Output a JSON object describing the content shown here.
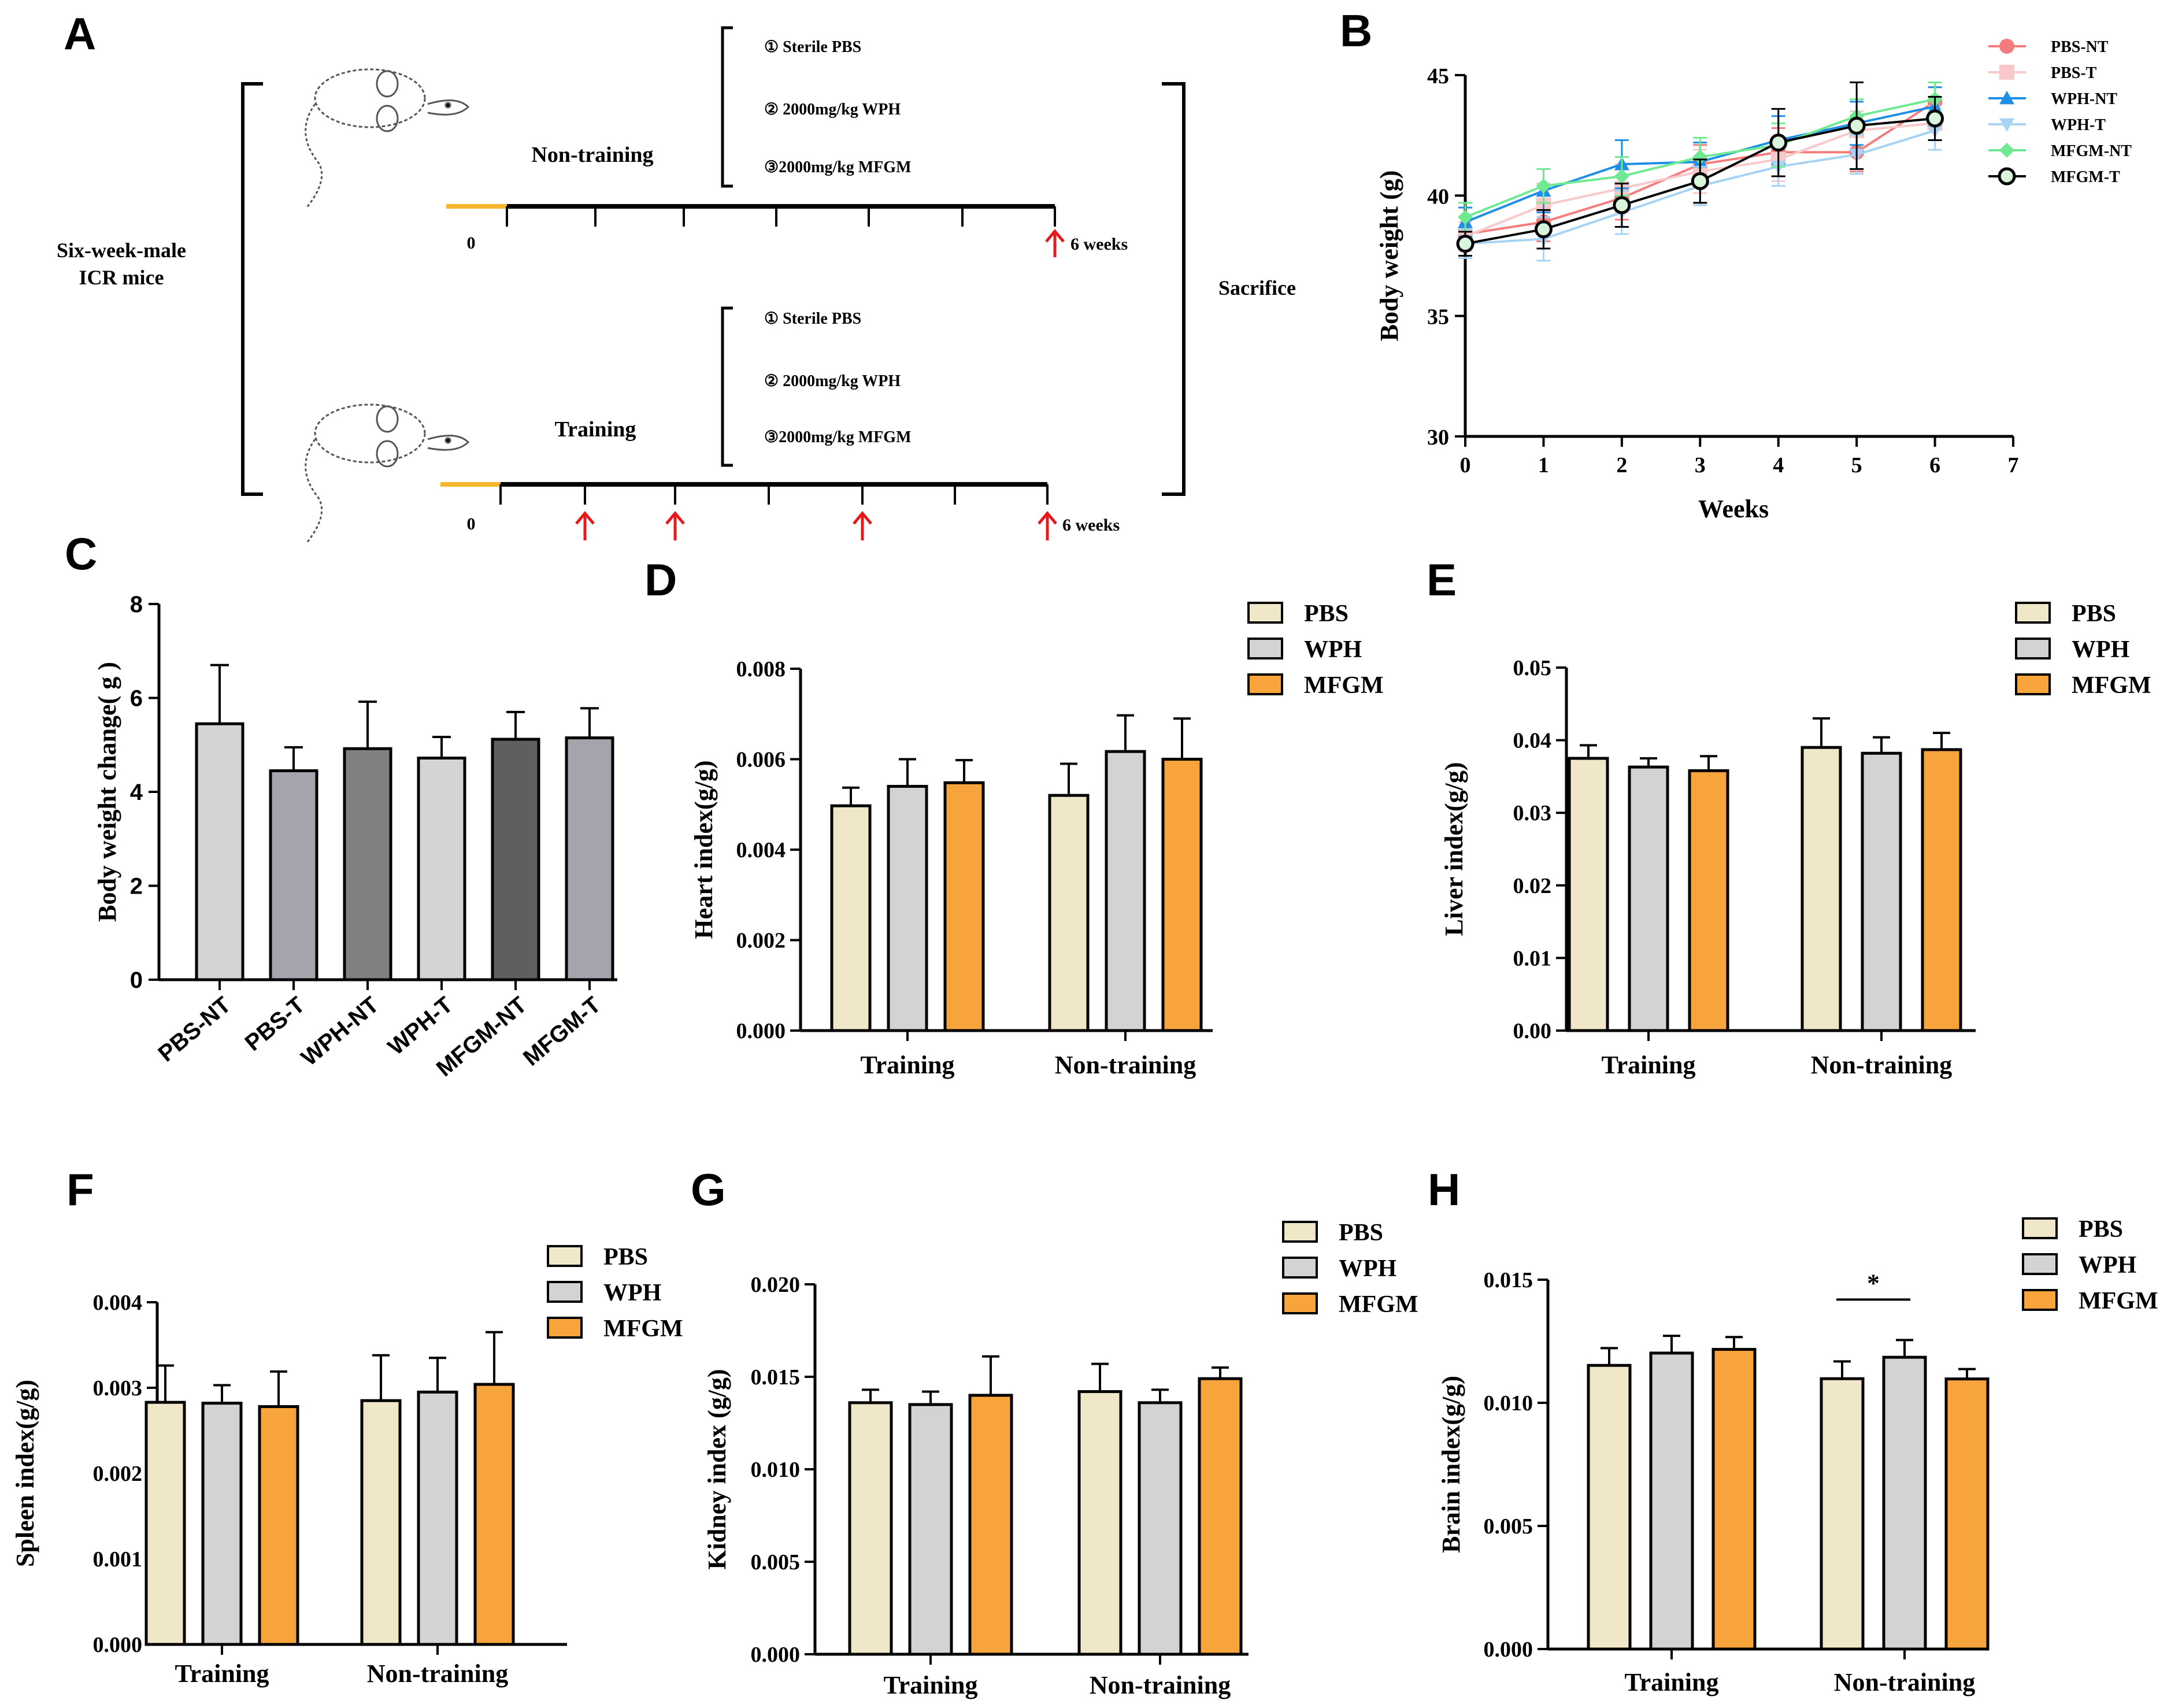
{
  "panel_labels": {
    "a": "A",
    "b": "B",
    "c": "C",
    "d": "D",
    "e": "E",
    "f": "F",
    "g": "G",
    "h": "H"
  },
  "colors": {
    "PBS": "#efe7c8",
    "WPH": "#d3d3d3",
    "MFGM": "#f7a43c",
    "timeline": "#000000",
    "start": "#f5b82e",
    "arrow": "#e41a1c"
  },
  "design": {
    "subject": [
      "Six-week-male",
      "ICR mice"
    ],
    "groups": [
      "Non-training",
      "Training"
    ],
    "treatments": [
      "① Sterile PBS",
      "② 2000mg/kg WPH",
      "③2000mg/kg MFGM"
    ],
    "start_label": "0",
    "end_label": "6 weeks",
    "outcome": "Sacrifice"
  },
  "chart_data": [
    {
      "id": "B",
      "type": "line",
      "xlabel": "Weeks",
      "ylabel": "Body weight (g)",
      "xlim": [
        0,
        7
      ],
      "ylim": [
        30,
        45
      ],
      "xticks": [
        "0",
        "1",
        "2",
        "3",
        "4",
        "5",
        "6",
        "7"
      ],
      "yticks": [
        "30",
        "35",
        "40",
        "45"
      ],
      "x": [
        0,
        1,
        2,
        3,
        4,
        5,
        6
      ],
      "series": [
        {
          "name": "PBS-NT",
          "color": "#f47c7c",
          "marker": "circle",
          "values": [
            38.4,
            38.9,
            39.9,
            41.3,
            41.8,
            41.8,
            43.9
          ],
          "err": [
            0.5,
            0.8,
            0.9,
            0.8,
            1.0,
            0.8,
            0.6
          ]
        },
        {
          "name": "PBS-T",
          "color": "#f9c9c9",
          "marker": "square",
          "values": [
            38.3,
            39.6,
            40.3,
            41.0,
            41.5,
            42.7,
            43.0
          ],
          "err": [
            0.6,
            0.9,
            1.0,
            0.9,
            0.9,
            0.8,
            0.7
          ]
        },
        {
          "name": "WPH-NT",
          "color": "#1f8fe6",
          "marker": "triangle",
          "values": [
            38.9,
            40.2,
            41.3,
            41.4,
            42.3,
            43.0,
            43.7
          ],
          "err": [
            0.6,
            0.9,
            1.0,
            0.8,
            1.0,
            0.9,
            0.8
          ]
        },
        {
          "name": "WPH-T",
          "color": "#a7d3f5",
          "marker": "triangle-down",
          "values": [
            38.0,
            38.2,
            39.3,
            40.4,
            41.2,
            41.7,
            42.7
          ],
          "err": [
            0.6,
            0.9,
            0.9,
            0.8,
            0.8,
            0.8,
            0.8
          ]
        },
        {
          "name": "MFGM-NT",
          "color": "#6fea93",
          "marker": "diamond",
          "values": [
            39.1,
            40.4,
            40.8,
            41.6,
            42.1,
            43.3,
            44.0
          ],
          "err": [
            0.6,
            0.7,
            0.8,
            0.8,
            0.9,
            0.7,
            0.7
          ]
        },
        {
          "name": "MFGM-T",
          "color": "#000000",
          "marker": "ring",
          "values": [
            38.0,
            38.6,
            39.6,
            40.6,
            42.2,
            42.9,
            43.2
          ],
          "err": [
            0.5,
            0.8,
            0.9,
            0.9,
            1.4,
            1.8,
            0.9
          ]
        }
      ]
    },
    {
      "id": "C",
      "type": "bar",
      "ylabel": "Body weight change( g )",
      "ylim": [
        0,
        8
      ],
      "yticks": [
        "0",
        "2",
        "4",
        "6",
        "8"
      ],
      "categories": [
        "PBS-NT",
        "PBS-T",
        "WPH-NT",
        "WPH-T",
        "MFGM-NT",
        "MFGM-T"
      ],
      "values": [
        5.45,
        4.45,
        4.92,
        4.72,
        5.12,
        5.15
      ],
      "err": [
        1.25,
        0.5,
        1.0,
        0.45,
        0.58,
        0.63
      ],
      "bar_colors": [
        "#d4d4d4",
        "#a4a4ac",
        "#808080",
        "#d4d4d4",
        "#5f5f5f",
        "#a4a4ac"
      ]
    },
    {
      "id": "D",
      "type": "bar",
      "ylabel": "Heart index(g/g)",
      "ylim": [
        0,
        0.008
      ],
      "yticks": [
        "0.000",
        "0.002",
        "0.004",
        "0.006",
        "0.008"
      ],
      "categories": [
        "Training",
        "Non-training"
      ],
      "legend": [
        "PBS",
        "WPH",
        "MFGM"
      ],
      "series": [
        {
          "name": "PBS",
          "values": [
            0.00497,
            0.0052
          ],
          "err": [
            0.0004,
            0.0007
          ]
        },
        {
          "name": "WPH",
          "values": [
            0.0054,
            0.00617
          ],
          "err": [
            0.0006,
            0.0008
          ]
        },
        {
          "name": "MFGM",
          "values": [
            0.00548,
            0.006
          ],
          "err": [
            0.0005,
            0.0009
          ]
        }
      ]
    },
    {
      "id": "E",
      "type": "bar",
      "ylabel": "Liver index(g/g)",
      "ylim": [
        0,
        0.05
      ],
      "yticks": [
        "0.00",
        "0.01",
        "0.02",
        "0.03",
        "0.04",
        "0.05"
      ],
      "categories": [
        "Training",
        "Non-training"
      ],
      "legend": [
        "PBS",
        "WPH",
        "MFGM"
      ],
      "series": [
        {
          "name": "PBS",
          "values": [
            0.0375,
            0.039
          ],
          "err": [
            0.0018,
            0.004
          ]
        },
        {
          "name": "WPH",
          "values": [
            0.0363,
            0.0382
          ],
          "err": [
            0.0012,
            0.0022
          ]
        },
        {
          "name": "MFGM",
          "values": [
            0.0358,
            0.0387
          ],
          "err": [
            0.002,
            0.0023
          ]
        }
      ]
    },
    {
      "id": "F",
      "type": "bar",
      "ylabel": "Spleen index(g/g)",
      "ylim": [
        0,
        0.004
      ],
      "yticks": [
        "0.000",
        "0.001",
        "0.002",
        "0.003",
        "0.004"
      ],
      "categories": [
        "Training",
        "Non-training"
      ],
      "legend": [
        "PBS",
        "WPH",
        "MFGM"
      ],
      "series": [
        {
          "name": "PBS",
          "values": [
            0.00283,
            0.00285
          ],
          "err": [
            0.00043,
            0.00053
          ]
        },
        {
          "name": "WPH",
          "values": [
            0.00282,
            0.00295
          ],
          "err": [
            0.00021,
            0.0004
          ]
        },
        {
          "name": "MFGM",
          "values": [
            0.00278,
            0.00304
          ],
          "err": [
            0.00041,
            0.00061
          ]
        }
      ]
    },
    {
      "id": "G",
      "type": "bar",
      "ylabel": "Kidney index (g/g)",
      "ylim": [
        0,
        0.02
      ],
      "yticks": [
        "0.000",
        "0.005",
        "0.010",
        "0.015",
        "0.020"
      ],
      "categories": [
        "Training",
        "Non-training"
      ],
      "legend": [
        "PBS",
        "WPH",
        "MFGM"
      ],
      "series": [
        {
          "name": "PBS",
          "values": [
            0.0136,
            0.0142
          ],
          "err": [
            0.0007,
            0.0015
          ]
        },
        {
          "name": "WPH",
          "values": [
            0.0135,
            0.0136
          ],
          "err": [
            0.0007,
            0.0007
          ]
        },
        {
          "name": "MFGM",
          "values": [
            0.014,
            0.0149
          ],
          "err": [
            0.0021,
            0.0006
          ]
        }
      ]
    },
    {
      "id": "H",
      "type": "bar",
      "ylabel": "Brain index(g/g)",
      "ylim": [
        0,
        0.015
      ],
      "yticks": [
        "0.000",
        "0.005",
        "0.010",
        "0.015"
      ],
      "categories": [
        "Training",
        "Non-training"
      ],
      "legend": [
        "PBS",
        "WPH",
        "MFGM"
      ],
      "series": [
        {
          "name": "PBS",
          "values": [
            0.01152,
            0.01098
          ],
          "err": [
            0.0007,
            0.0007
          ]
        },
        {
          "name": "WPH",
          "values": [
            0.01202,
            0.01185
          ],
          "err": [
            0.0007,
            0.0007
          ]
        },
        {
          "name": "MFGM",
          "values": [
            0.01217,
            0.01097
          ],
          "err": [
            0.0005,
            0.0004
          ]
        }
      ],
      "significance": {
        "label": "*",
        "category": "Non-training",
        "between": [
          "PBS",
          "WPH"
        ]
      }
    }
  ]
}
